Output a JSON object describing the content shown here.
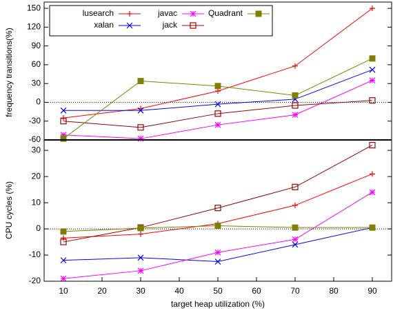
{
  "chart_data": [
    {
      "type": "line",
      "ylabel": "frequency transitions(%)",
      "x": [
        10,
        30,
        50,
        70,
        90
      ],
      "xlim": [
        5,
        95
      ],
      "ylim": [
        -60,
        160
      ],
      "yticks": [
        -60,
        -30,
        0,
        30,
        60,
        90,
        120,
        150
      ],
      "series": [
        {
          "name": "lusearch",
          "color": "#ff0000",
          "marker": "plus",
          "values": [
            -25,
            -10,
            18,
            58,
            150
          ]
        },
        {
          "name": "xalan",
          "color": "#0000ff",
          "marker": "x",
          "values": [
            -13,
            -13,
            -3,
            5,
            52
          ]
        },
        {
          "name": "javac",
          "color": "#ff00ff",
          "marker": "star",
          "values": [
            -52,
            -58,
            -36,
            -20,
            35
          ]
        },
        {
          "name": "jack",
          "color": "#990000",
          "marker": "square-open",
          "values": [
            -30,
            -40,
            -18,
            -5,
            3
          ]
        },
        {
          "name": "Quadrant",
          "color": "#808000",
          "marker": "square",
          "values": [
            -58,
            34,
            26,
            11,
            70
          ]
        }
      ]
    },
    {
      "type": "line",
      "ylabel": "CPU cycles (%)",
      "xlabel": "target heap utilization (%)",
      "x": [
        10,
        30,
        50,
        70,
        90
      ],
      "xlim": [
        5,
        95
      ],
      "xticks": [
        10,
        20,
        30,
        40,
        50,
        60,
        70,
        80,
        90
      ],
      "ylim": [
        -20,
        34
      ],
      "yticks": [
        -20,
        -10,
        0,
        10,
        20,
        30
      ],
      "series": [
        {
          "color": "#ff0000",
          "marker": "plus",
          "values": [
            -3.5,
            -2,
            2,
            9,
            21
          ]
        },
        {
          "color": "#0000ff",
          "marker": "x",
          "values": [
            -12,
            -11,
            -12.5,
            -6,
            0.5
          ]
        },
        {
          "color": "#ff00ff",
          "marker": "star",
          "values": [
            -19,
            -16,
            -9,
            -4,
            14
          ]
        },
        {
          "color": "#990000",
          "marker": "square-open",
          "values": [
            -5,
            0.5,
            8,
            16,
            32
          ]
        },
        {
          "color": "#808000",
          "marker": "square",
          "values": [
            -1,
            0.3,
            1.2,
            0.5,
            0.5
          ]
        }
      ]
    }
  ]
}
